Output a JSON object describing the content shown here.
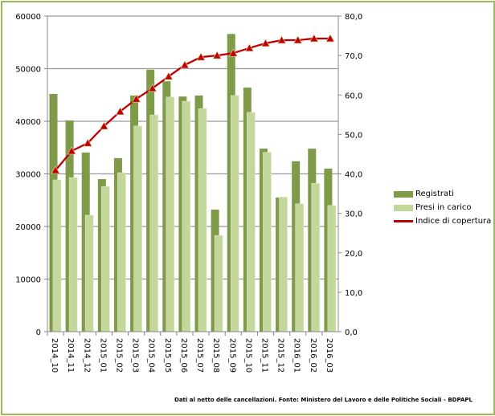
{
  "chart_data": {
    "type": "bar",
    "categories": [
      "2014_10",
      "2014_11",
      "2014_12",
      "2015_01",
      "2015_02",
      "2015_03",
      "2015_04",
      "2015_05",
      "2015_06",
      "2015_07",
      "2015_08",
      "2015_09",
      "2015_10",
      "2015_11",
      "2015_12",
      "2016_01",
      "2016_02",
      "2016_03"
    ],
    "series": [
      {
        "name": "Registrati",
        "type": "bar",
        "axis": "left",
        "color": "#7f9a48",
        "values": [
          45200,
          40150,
          34050,
          29000,
          33000,
          44900,
          49800,
          47600,
          44700,
          44900,
          23200,
          56600,
          46400,
          34800,
          25500,
          32400,
          34800,
          31000
        ]
      },
      {
        "name": "Presi in carico",
        "type": "bar",
        "axis": "left",
        "color": "#c4d79b",
        "values": [
          28850,
          29300,
          22150,
          27600,
          30200,
          39100,
          41200,
          44600,
          43800,
          42400,
          18300,
          44900,
          41700,
          34100,
          25600,
          24300,
          28200,
          24000
        ]
      },
      {
        "name": "Indice di copertura",
        "type": "line",
        "axis": "right",
        "color": "#c00000",
        "values": [
          40.9,
          45.8,
          47.8,
          52.1,
          55.8,
          59.0,
          61.7,
          64.7,
          67.6,
          69.6,
          70.0,
          70.6,
          71.9,
          73.1,
          73.9,
          73.9,
          74.3,
          74.3
        ]
      }
    ],
    "y_left": {
      "range": [
        0,
        60000
      ],
      "ticks": [
        "0",
        "10000",
        "20000",
        "30000",
        "40000",
        "50000",
        "60000"
      ]
    },
    "y_right": {
      "range": [
        0,
        80
      ],
      "ticks": [
        "0,0",
        "10,0",
        "20,0",
        "30,0",
        "40,0",
        "50,0",
        "60,0",
        "70,0",
        "80,0"
      ]
    },
    "grid": true,
    "legend": "right",
    "footnote": "Dati al netto delle cancellazioni. Fonte: Ministero del Lavoro e delle Politiche Sociali - BDPAPL"
  }
}
